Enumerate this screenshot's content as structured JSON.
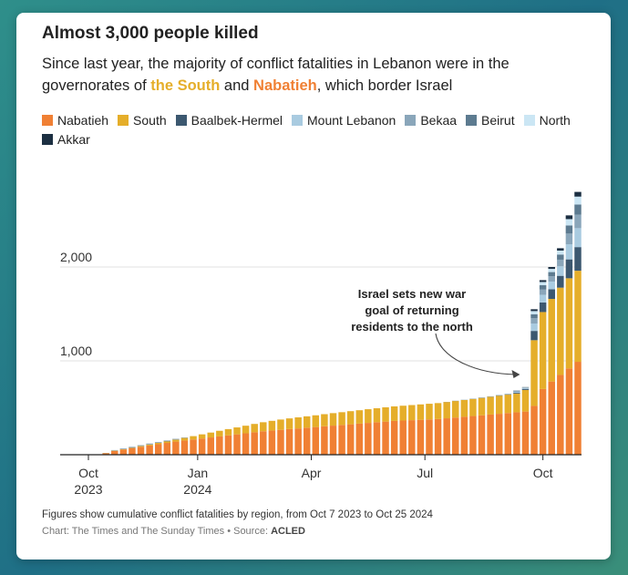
{
  "chart_data": {
    "type": "bar",
    "stacked": true,
    "title": "Almost 3,000 people killed",
    "subtitle_parts": {
      "before": "Since last year, the majority of conflict fatalities in Lebanon were in the governorates of ",
      "south": "the South",
      "and": " and ",
      "nabatieh": "Nabatieh",
      "after": ", which border Israel"
    },
    "ylim": [
      0,
      3000
    ],
    "yticks": [
      {
        "value": 1000,
        "label": "1,000"
      },
      {
        "value": 2000,
        "label": "2,000"
      }
    ],
    "xticks": [
      {
        "week": 0,
        "label": "Oct",
        "label2": "2023"
      },
      {
        "week": 12.5,
        "label": "Jan",
        "label2": "2024"
      },
      {
        "week": 25.5,
        "label": "Apr",
        "label2": ""
      },
      {
        "week": 38.5,
        "label": "Jul",
        "label2": ""
      },
      {
        "week": 52,
        "label": "Oct",
        "label2": ""
      }
    ],
    "series": [
      {
        "name": "Nabatieh",
        "color": "#f08034"
      },
      {
        "name": "South",
        "color": "#e5ae2a"
      },
      {
        "name": "Baalbek-Hermel",
        "color": "#3c5870"
      },
      {
        "name": "Mount Lebanon",
        "color": "#a9cbe0"
      },
      {
        "name": "Bekaa",
        "color": "#8aa6ba"
      },
      {
        "name": "Beirut",
        "color": "#5d7b90"
      },
      {
        "name": "North",
        "color": "#cbe6f4"
      },
      {
        "name": "Akkar",
        "color": "#1c2f42"
      }
    ],
    "annotation": {
      "lines": [
        "Israel sets new war",
        "goal of returning",
        "residents to the north"
      ],
      "week": 50
    },
    "footnote": "Figures show cumulative conflict fatalities by region, from Oct 7 2023 to Oct 25 2024",
    "credit": "Chart: The Times and The Sunday Times • Source: ",
    "source": "ACLED"
  }
}
